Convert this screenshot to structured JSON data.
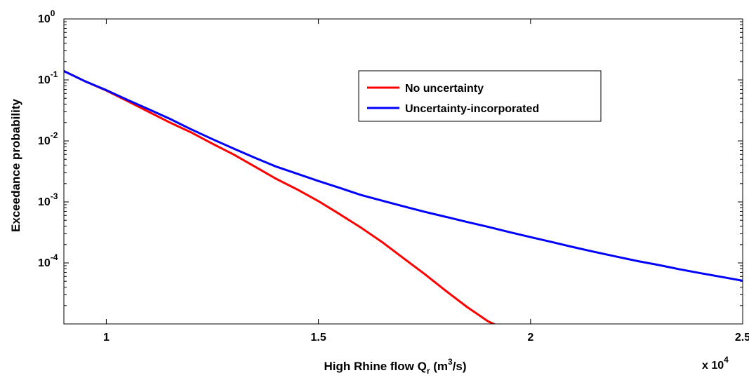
{
  "chart_data": {
    "type": "line",
    "title": "",
    "xlabel": "High Rhine flow Q",
    "xlabel_subscript": "r",
    "xlabel_unit_open": " (m",
    "xlabel_unit_sup": "3",
    "xlabel_unit_close": "/s)",
    "ylabel": "Exceedance probability",
    "x_multiplier": "x 10",
    "x_multiplier_exp": "4",
    "xlim": [
      9000,
      25000
    ],
    "ylim": [
      1e-05,
      1
    ],
    "yscale": "log",
    "grid": false,
    "legend_position": "top-right",
    "x_ticks": [
      {
        "value": 10000,
        "label": "1"
      },
      {
        "value": 15000,
        "label": "1.5"
      },
      {
        "value": 20000,
        "label": "2"
      },
      {
        "value": 25000,
        "label": "2.5"
      }
    ],
    "y_ticks": [
      {
        "value": 1,
        "base": "10",
        "exp": "0"
      },
      {
        "value": 0.1,
        "base": "10",
        "exp": "-1"
      },
      {
        "value": 0.01,
        "base": "10",
        "exp": "-2"
      },
      {
        "value": 0.001,
        "base": "10",
        "exp": "-3"
      },
      {
        "value": 0.0001,
        "base": "10",
        "exp": "-4"
      }
    ],
    "series": [
      {
        "name": "No uncertainty",
        "color": "#ff0000",
        "x": [
          9000,
          9500,
          10000,
          10500,
          11000,
          11500,
          12000,
          12500,
          13000,
          13500,
          14000,
          14500,
          15000,
          15500,
          16000,
          16500,
          17000,
          17500,
          18000,
          18500,
          19000,
          19200
        ],
        "y": [
          0.14,
          0.095,
          0.067,
          0.045,
          0.03,
          0.02,
          0.0138,
          0.009,
          0.006,
          0.0038,
          0.0024,
          0.0016,
          0.00103,
          0.00063,
          0.00038,
          0.00022,
          0.00012,
          6.6e-05,
          3.5e-05,
          1.9e-05,
          1.1e-05,
          9.5e-06
        ]
      },
      {
        "name": "Uncertainty-incorporated",
        "color": "#0000ff",
        "x": [
          9000,
          9500,
          10000,
          10500,
          11000,
          11500,
          12000,
          12500,
          13000,
          13500,
          14000,
          14500,
          15000,
          15500,
          16000,
          16500,
          17000,
          17500,
          18000,
          18500,
          19000,
          19500,
          20000,
          20500,
          21000,
          21500,
          22000,
          22500,
          23000,
          23500,
          24000,
          24500,
          25000
        ],
        "y": [
          0.14,
          0.095,
          0.068,
          0.047,
          0.033,
          0.023,
          0.0155,
          0.0107,
          0.0075,
          0.0053,
          0.0038,
          0.0029,
          0.0022,
          0.0017,
          0.0013,
          0.00105,
          0.00085,
          0.00069,
          0.00057,
          0.00047,
          0.00039,
          0.00032,
          0.000265,
          0.00022,
          0.000182,
          0.000152,
          0.000128,
          0.000108,
          9.3e-05,
          7.9e-05,
          6.8e-05,
          5.9e-05,
          5.1e-05
        ]
      }
    ]
  }
}
